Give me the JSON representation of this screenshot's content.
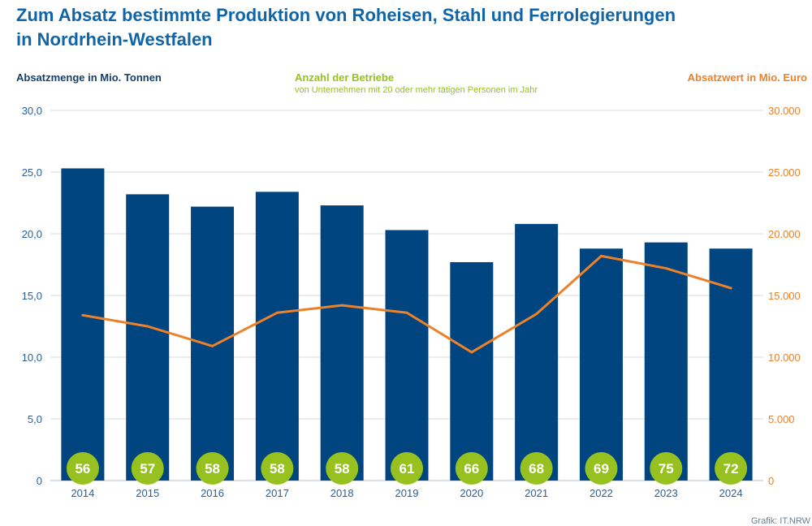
{
  "title_line1": "Zum Absatz bestimmte Produktion von Roheisen, Stahl und Ferrolegierungen",
  "title_line2": "in Nordrhein-Westfalen",
  "source": "Grafik: IT.NRW",
  "chart_data": {
    "type": "bar",
    "title": "Zum Absatz bestimmte Produktion von Roheisen, Stahl und Ferrolegierungen in Nordrhein-Westfalen",
    "categories": [
      "2014",
      "2015",
      "2016",
      "2017",
      "2018",
      "2019",
      "2020",
      "2021",
      "2022",
      "2023",
      "2024"
    ],
    "series": [
      {
        "name": "Absatzmenge in Mio. Tonnen",
        "type": "bar",
        "axis": "left",
        "color": "#004580",
        "values": [
          25.3,
          23.2,
          22.2,
          23.4,
          22.3,
          20.3,
          17.7,
          20.8,
          18.8,
          19.3,
          18.8
        ]
      },
      {
        "name": "Absatzwert in Mio. Euro",
        "type": "line",
        "axis": "right",
        "color": "#ec8129",
        "values": [
          13400,
          12500,
          10900,
          13600,
          14200,
          13600,
          10400,
          13500,
          18200,
          17200,
          15600
        ]
      },
      {
        "name": "Anzahl der Betriebe",
        "type": "badge",
        "color": "#96c11f",
        "values": [
          56,
          57,
          58,
          58,
          58,
          61,
          66,
          68,
          69,
          75,
          72
        ]
      }
    ],
    "count_subtitle": "von Unternehmen mit 20 oder mehr tätigen Personen im Jahr",
    "y_left": {
      "label": "Absatzmenge in Mio. Tonnen",
      "range": [
        0,
        30
      ],
      "ticks": [
        "0",
        "5,0",
        "10,0",
        "15,0",
        "20,0",
        "25,0",
        "30,0"
      ],
      "color": "#2a5f9a"
    },
    "y_right": {
      "label": "Absatzwert in Mio. Euro",
      "range": [
        0,
        30000
      ],
      "ticks": [
        "0",
        "5.000",
        "10.000",
        "15.000",
        "20.000",
        "25.000",
        "30.000"
      ],
      "color": "#ec8129"
    },
    "grid": true,
    "legend": "top"
  }
}
